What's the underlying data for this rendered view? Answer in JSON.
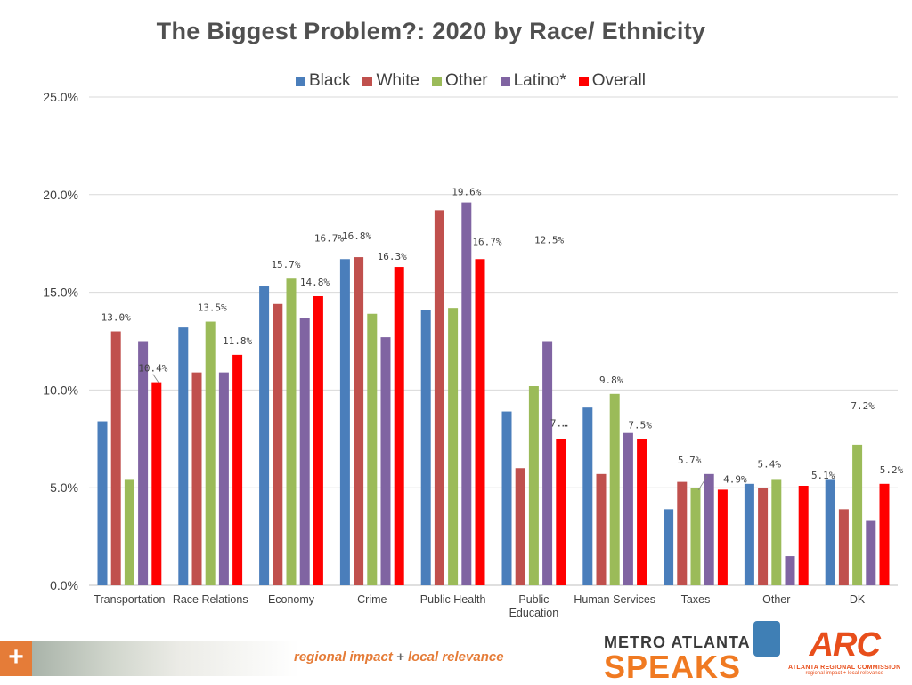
{
  "chart_data": {
    "type": "bar",
    "title": "The Biggest Problem?: 2020 by Race/ Ethnicity",
    "categories": [
      "Transportation",
      "Race Relations",
      "Economy",
      "Crime",
      "Public Health",
      "Public Education",
      "Human Services",
      "Taxes",
      "Other",
      "DK"
    ],
    "series": [
      {
        "name": "Black",
        "color": "#4a7ebb",
        "values": [
          8.4,
          13.2,
          15.3,
          16.7,
          14.1,
          8.9,
          9.1,
          3.9,
          5.2,
          5.4
        ]
      },
      {
        "name": "White",
        "color": "#c0504d",
        "values": [
          13.0,
          10.9,
          14.4,
          16.8,
          19.2,
          6.0,
          5.7,
          5.3,
          5.0,
          3.9
        ]
      },
      {
        "name": "Other",
        "color": "#9bbb59",
        "values": [
          5.4,
          13.5,
          15.7,
          13.9,
          14.2,
          10.2,
          9.8,
          5.0,
          5.4,
          7.2
        ]
      },
      {
        "name": "Latino*",
        "color": "#8064a2",
        "values": [
          12.5,
          10.9,
          13.7,
          12.7,
          19.6,
          12.5,
          7.8,
          5.7,
          1.5,
          3.3
        ]
      },
      {
        "name": "Overall",
        "color": "#ff0000",
        "values": [
          10.4,
          11.8,
          14.8,
          16.3,
          16.7,
          7.5,
          7.5,
          4.9,
          5.1,
          5.2
        ]
      }
    ],
    "ylim": [
      0,
      25
    ],
    "y_ticks": [
      "0.0%",
      "5.0%",
      "10.0%",
      "15.0%",
      "20.0%",
      "25.0%"
    ],
    "grid": true,
    "legend_position": "top",
    "data_labels": [
      {
        "category": 0,
        "series": 1,
        "text": "13.0%"
      },
      {
        "category": 0,
        "series": 4,
        "text": "10.4%"
      },
      {
        "category": 1,
        "series": 2,
        "text": "13.5%"
      },
      {
        "category": 1,
        "series": 4,
        "text": "11.8%"
      },
      {
        "category": 2,
        "series": 2,
        "text": "15.7%"
      },
      {
        "category": 2,
        "series": 4,
        "text": "14.8%"
      },
      {
        "category": 3,
        "series": 0,
        "text": "16.7%"
      },
      {
        "category": 3,
        "series": 1,
        "text": "16.8%"
      },
      {
        "category": 3,
        "series": 4,
        "text": "16.3%"
      },
      {
        "category": 4,
        "series": 3,
        "text": "19.6%"
      },
      {
        "category": 4,
        "series": 4,
        "text": "16.7%"
      },
      {
        "category": 5,
        "series": 3,
        "text": "12.5%"
      },
      {
        "category": 5,
        "series": 4,
        "text": "7.…"
      },
      {
        "category": 6,
        "series": 2,
        "text": "9.8%"
      },
      {
        "category": 6,
        "series": 4,
        "text": "7.5%"
      },
      {
        "category": 7,
        "series": 3,
        "text": "5.7%"
      },
      {
        "category": 7,
        "series": 4,
        "text": "4.9%"
      },
      {
        "category": 8,
        "series": 2,
        "text": "5.4%"
      },
      {
        "category": 8,
        "series": 4,
        "text": "5.1%"
      },
      {
        "category": 9,
        "series": 2,
        "text": "7.2%"
      },
      {
        "category": 9,
        "series": 4,
        "text": "5.2%"
      }
    ]
  },
  "footer": {
    "plus": "+",
    "slogan_left": "regional impact",
    "slogan_plus": " + ",
    "slogan_right": "local relevance",
    "brand_top": "METRO ATLANTA",
    "brand_bottom": "SPEAKS",
    "arc_logo": "ARC",
    "arc_name": "ATLANTA REGIONAL COMMISSION",
    "arc_tagline": "regional impact + local relevance"
  },
  "colors": {
    "accent": "#e57c38",
    "grid": "#d9d9d9",
    "text": "#404040"
  }
}
